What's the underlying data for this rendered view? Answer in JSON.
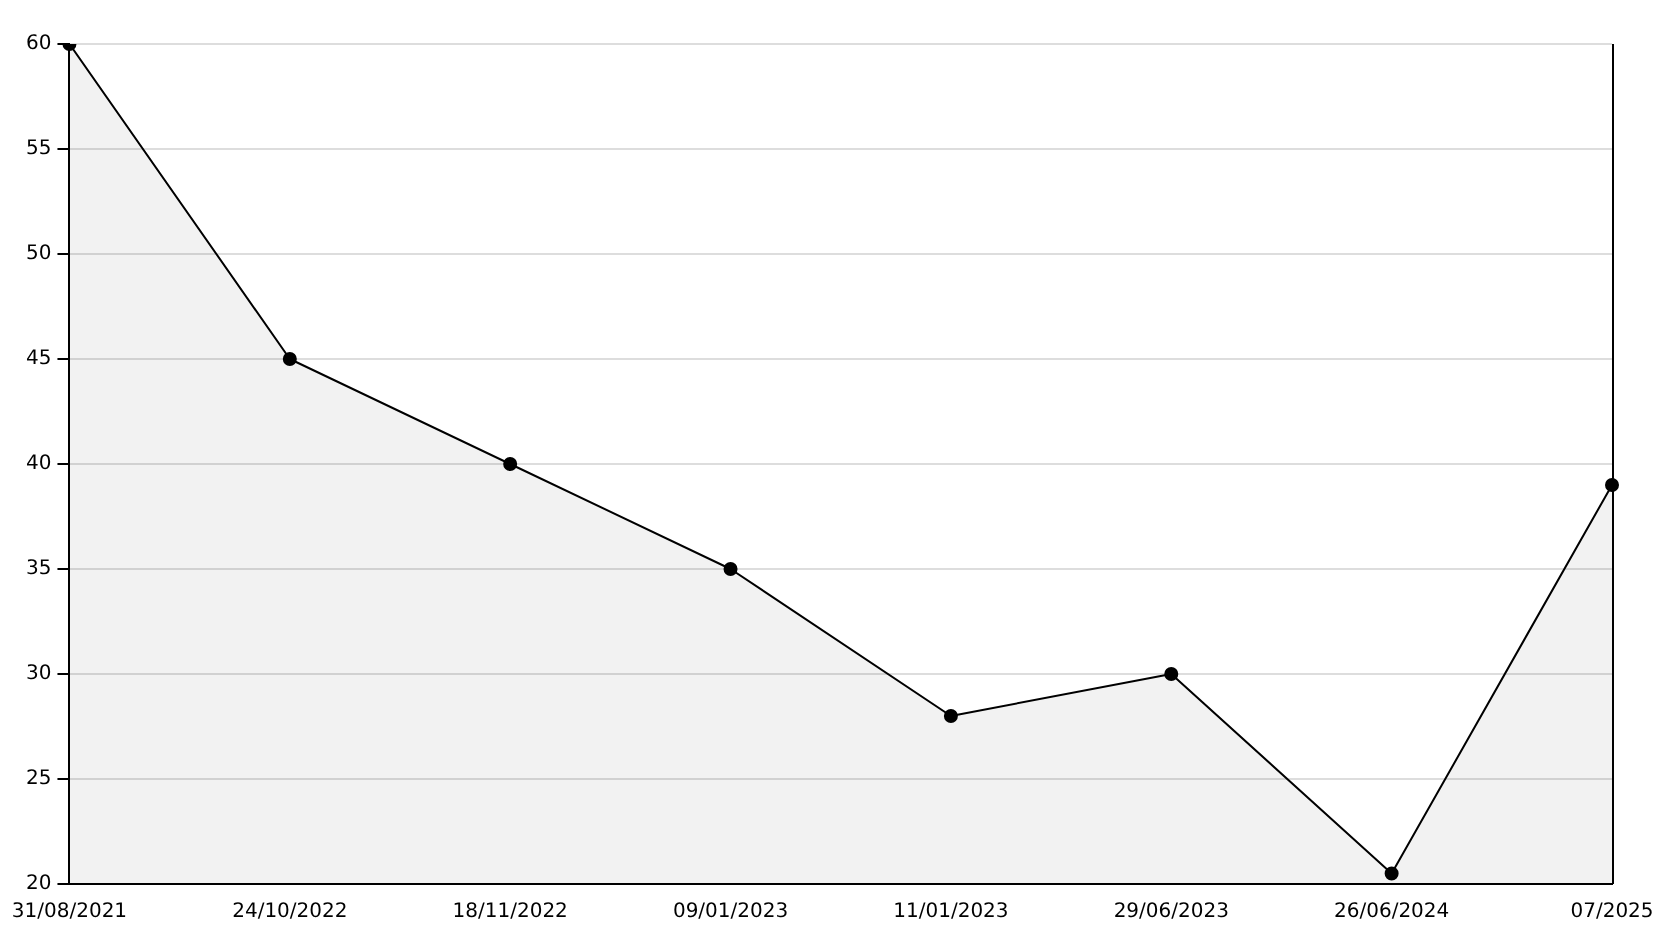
{
  "chart_data": {
    "type": "area",
    "categories": [
      "31/08/2021",
      "24/10/2022",
      "18/11/2022",
      "09/01/2023",
      "11/01/2023",
      "29/06/2023",
      "26/06/2024",
      "07/2025"
    ],
    "series": [
      {
        "color": "#000000",
        "values": [
          60,
          45,
          40,
          35,
          28,
          30,
          20.5,
          39
        ]
      }
    ],
    "ylim": [
      20,
      60
    ],
    "yticks": [
      20,
      25,
      30,
      35,
      40,
      45,
      50,
      55,
      60
    ],
    "grid": "y",
    "legend": false,
    "marker": "circle"
  }
}
